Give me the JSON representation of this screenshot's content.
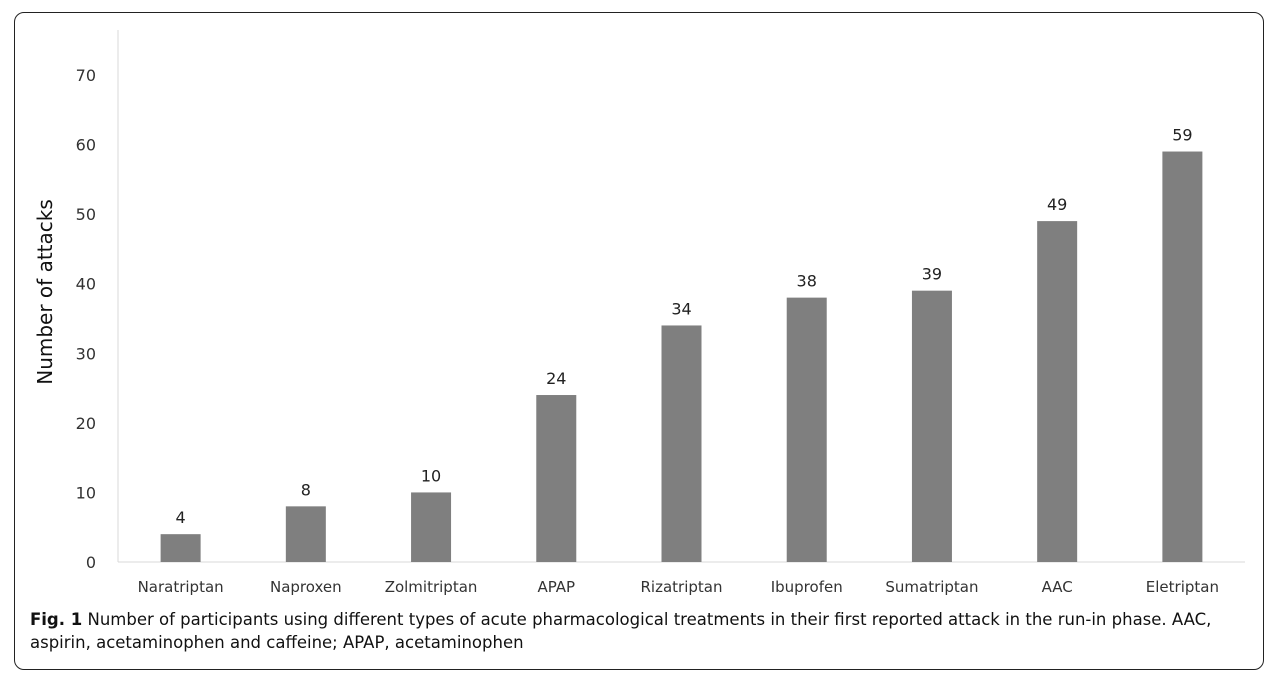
{
  "chart_data": {
    "type": "bar",
    "categories": [
      "Naratriptan",
      "Naproxen",
      "Zolmitriptan",
      "APAP",
      "Rizatriptan",
      "Ibuprofen",
      "Sumatriptan",
      "AAC",
      "Eletriptan"
    ],
    "values": [
      4,
      8,
      10,
      24,
      34,
      38,
      39,
      49,
      59
    ],
    "ylabel": "Number of attacks",
    "xlabel": "",
    "ylim": [
      0,
      70
    ],
    "yticks": [
      0,
      10,
      20,
      30,
      40,
      50,
      60,
      70
    ],
    "data_labels": true,
    "grid": false,
    "bar_color": "#7f7f7f"
  },
  "caption": {
    "label": "Fig. 1",
    "text": " Number of participants using different types of acute pharmacological treatments in their first reported attack in the run-in phase. AAC, aspirin, acetaminophen and caffeine; APAP, acetaminophen"
  }
}
